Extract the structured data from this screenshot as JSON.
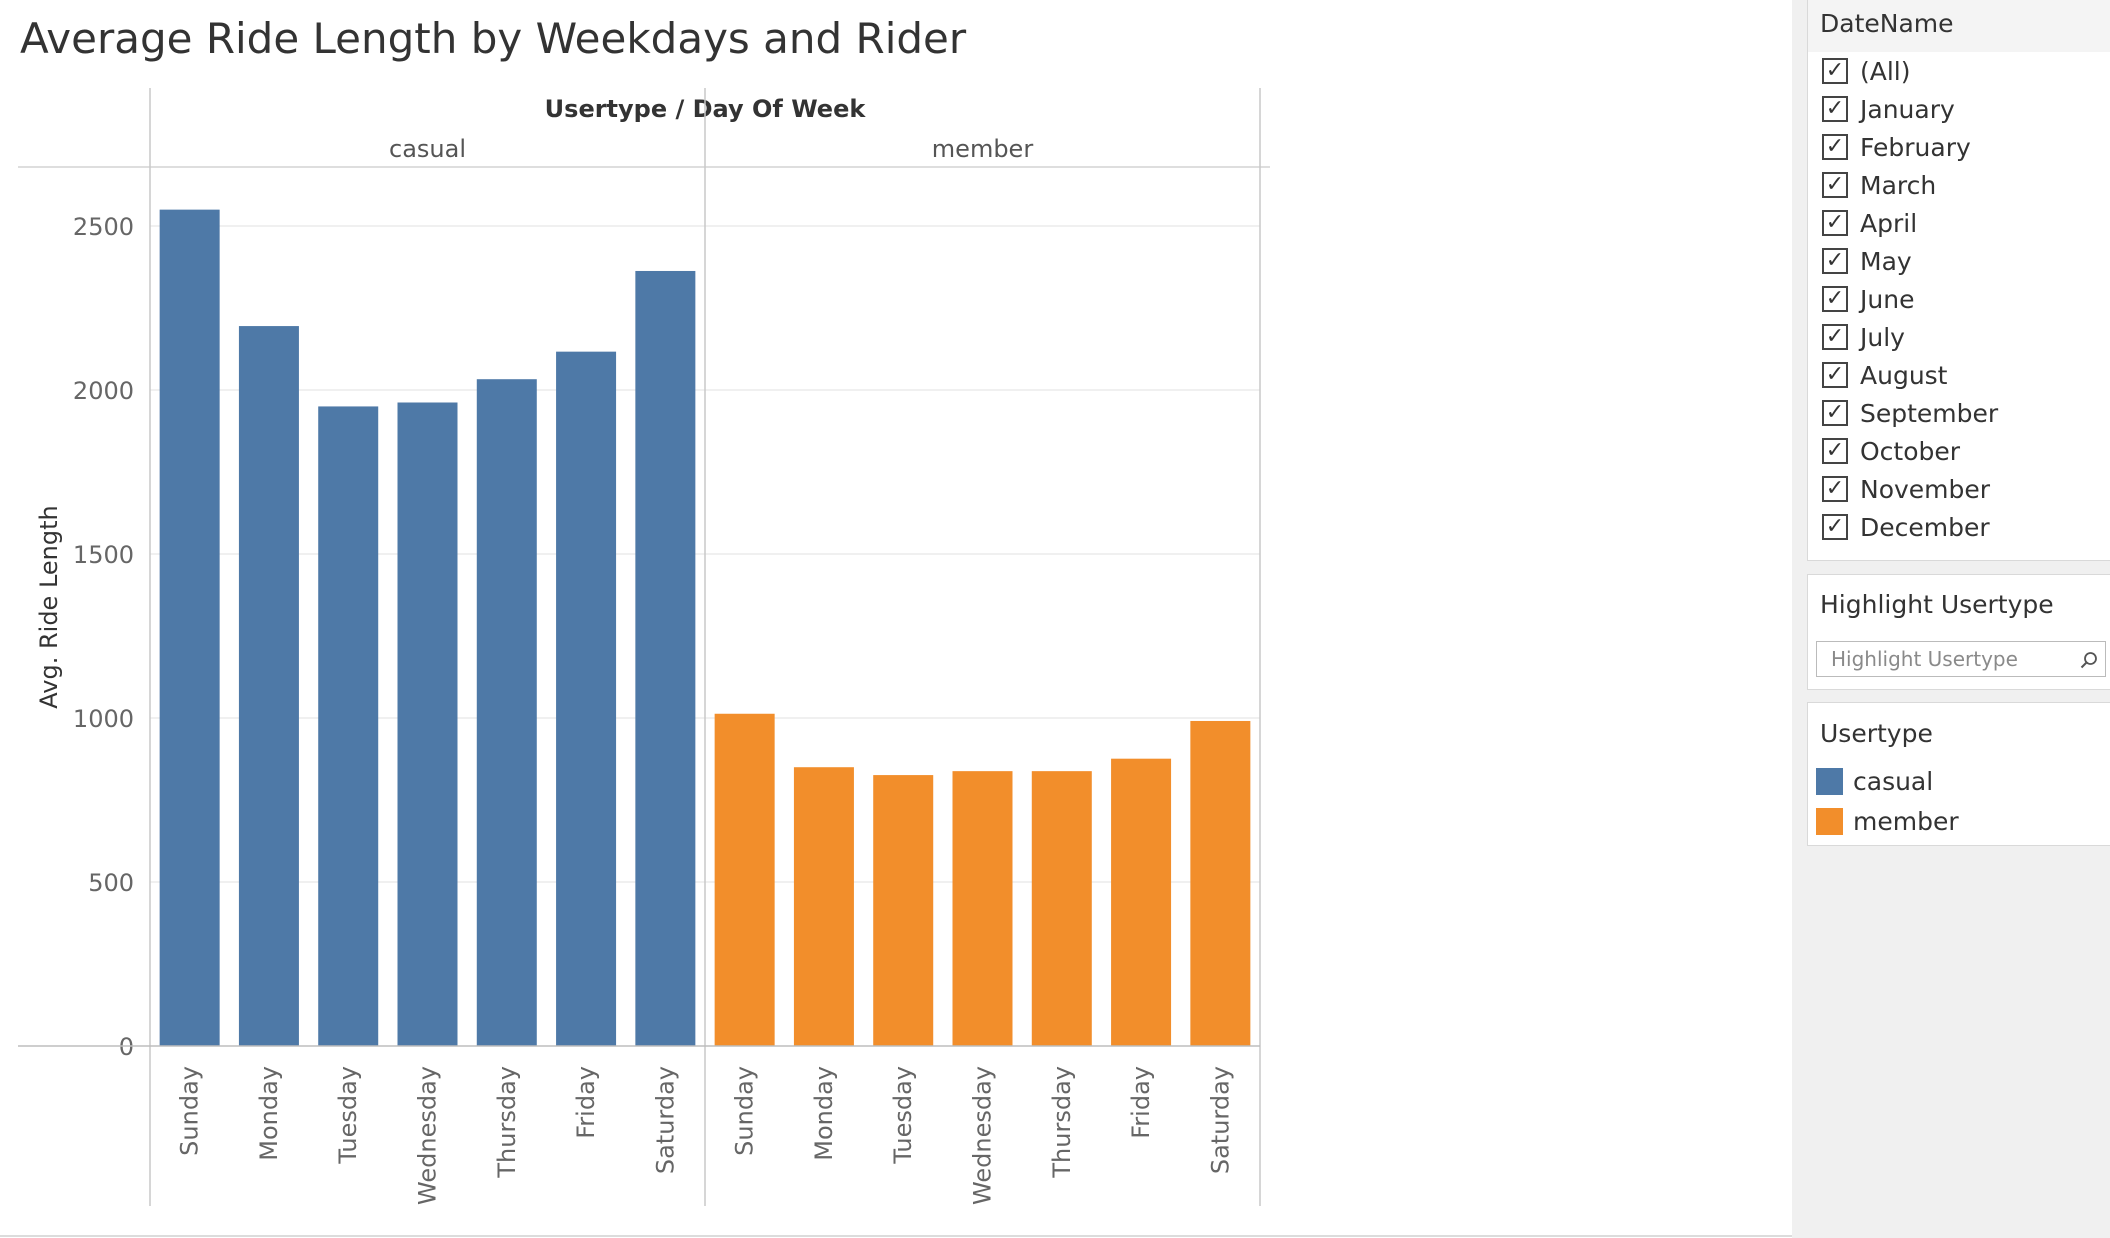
{
  "colors": {
    "casual": "#4e79a7",
    "member": "#f28e2b"
  },
  "chart_data": {
    "type": "bar",
    "title": "Average Ride Length by Weekdays and Rider",
    "header": "Usertype / Day Of Week",
    "ylabel": "Avg. Ride Length",
    "ylim": [
      0,
      2680
    ],
    "yticks": [
      0,
      500,
      1000,
      1500,
      2000,
      2500
    ],
    "grid": true,
    "panes": [
      {
        "name": "casual",
        "categories": [
          "Sunday",
          "Monday",
          "Tuesday",
          "Wednesday",
          "Thursday",
          "Friday",
          "Saturday"
        ],
        "values": [
          2550,
          2195,
          1950,
          1962,
          2033,
          2117,
          2363
        ]
      },
      {
        "name": "member",
        "categories": [
          "Sunday",
          "Monday",
          "Tuesday",
          "Wednesday",
          "Thursday",
          "Friday",
          "Saturday"
        ],
        "values": [
          1013,
          850,
          826,
          838,
          838,
          876,
          991
        ]
      }
    ]
  },
  "filters": {
    "datename": {
      "title": "DateName",
      "items": [
        {
          "label": "(All)",
          "checked": true
        },
        {
          "label": "January",
          "checked": true
        },
        {
          "label": "February",
          "checked": true
        },
        {
          "label": "March",
          "checked": true
        },
        {
          "label": "April",
          "checked": true
        },
        {
          "label": "May",
          "checked": true
        },
        {
          "label": "June",
          "checked": true
        },
        {
          "label": "July",
          "checked": true
        },
        {
          "label": "August",
          "checked": true
        },
        {
          "label": "September",
          "checked": true
        },
        {
          "label": "October",
          "checked": true
        },
        {
          "label": "November",
          "checked": true
        },
        {
          "label": "December",
          "checked": true
        }
      ],
      "check_glyph": "✓"
    },
    "highlight": {
      "title": "Highlight Usertype",
      "placeholder": "Highlight Usertype",
      "icon": "search-icon"
    },
    "usertype_legend": {
      "title": "Usertype",
      "items": [
        {
          "label": "casual",
          "color": "#4e79a7"
        },
        {
          "label": "member",
          "color": "#f28e2b"
        }
      ]
    }
  }
}
